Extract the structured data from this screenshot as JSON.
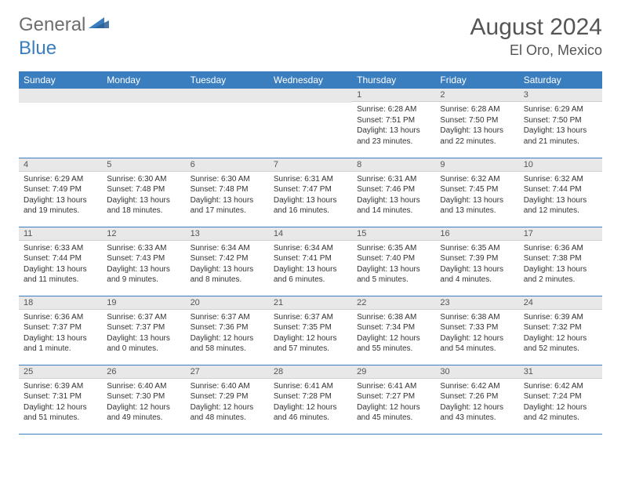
{
  "logo": {
    "part1": "General",
    "part2": "Blue"
  },
  "title": "August 2024",
  "location": "El Oro, Mexico",
  "colors": {
    "header_bg": "#3a7ebf",
    "header_text": "#ffffff",
    "daynum_bg": "#e8e8e8",
    "border": "#3a7ebf",
    "text": "#333333",
    "logo_gray": "#6e6e6e",
    "logo_blue": "#3a7ebf"
  },
  "weekdays": [
    "Sunday",
    "Monday",
    "Tuesday",
    "Wednesday",
    "Thursday",
    "Friday",
    "Saturday"
  ],
  "weeks": [
    [
      null,
      null,
      null,
      null,
      {
        "n": "1",
        "sr": "6:28 AM",
        "ss": "7:51 PM",
        "dl": "13 hours and 23 minutes."
      },
      {
        "n": "2",
        "sr": "6:28 AM",
        "ss": "7:50 PM",
        "dl": "13 hours and 22 minutes."
      },
      {
        "n": "3",
        "sr": "6:29 AM",
        "ss": "7:50 PM",
        "dl": "13 hours and 21 minutes."
      }
    ],
    [
      {
        "n": "4",
        "sr": "6:29 AM",
        "ss": "7:49 PM",
        "dl": "13 hours and 19 minutes."
      },
      {
        "n": "5",
        "sr": "6:30 AM",
        "ss": "7:48 PM",
        "dl": "13 hours and 18 minutes."
      },
      {
        "n": "6",
        "sr": "6:30 AM",
        "ss": "7:48 PM",
        "dl": "13 hours and 17 minutes."
      },
      {
        "n": "7",
        "sr": "6:31 AM",
        "ss": "7:47 PM",
        "dl": "13 hours and 16 minutes."
      },
      {
        "n": "8",
        "sr": "6:31 AM",
        "ss": "7:46 PM",
        "dl": "13 hours and 14 minutes."
      },
      {
        "n": "9",
        "sr": "6:32 AM",
        "ss": "7:45 PM",
        "dl": "13 hours and 13 minutes."
      },
      {
        "n": "10",
        "sr": "6:32 AM",
        "ss": "7:44 PM",
        "dl": "13 hours and 12 minutes."
      }
    ],
    [
      {
        "n": "11",
        "sr": "6:33 AM",
        "ss": "7:44 PM",
        "dl": "13 hours and 11 minutes."
      },
      {
        "n": "12",
        "sr": "6:33 AM",
        "ss": "7:43 PM",
        "dl": "13 hours and 9 minutes."
      },
      {
        "n": "13",
        "sr": "6:34 AM",
        "ss": "7:42 PM",
        "dl": "13 hours and 8 minutes."
      },
      {
        "n": "14",
        "sr": "6:34 AM",
        "ss": "7:41 PM",
        "dl": "13 hours and 6 minutes."
      },
      {
        "n": "15",
        "sr": "6:35 AM",
        "ss": "7:40 PM",
        "dl": "13 hours and 5 minutes."
      },
      {
        "n": "16",
        "sr": "6:35 AM",
        "ss": "7:39 PM",
        "dl": "13 hours and 4 minutes."
      },
      {
        "n": "17",
        "sr": "6:36 AM",
        "ss": "7:38 PM",
        "dl": "13 hours and 2 minutes."
      }
    ],
    [
      {
        "n": "18",
        "sr": "6:36 AM",
        "ss": "7:37 PM",
        "dl": "13 hours and 1 minute."
      },
      {
        "n": "19",
        "sr": "6:37 AM",
        "ss": "7:37 PM",
        "dl": "13 hours and 0 minutes."
      },
      {
        "n": "20",
        "sr": "6:37 AM",
        "ss": "7:36 PM",
        "dl": "12 hours and 58 minutes."
      },
      {
        "n": "21",
        "sr": "6:37 AM",
        "ss": "7:35 PM",
        "dl": "12 hours and 57 minutes."
      },
      {
        "n": "22",
        "sr": "6:38 AM",
        "ss": "7:34 PM",
        "dl": "12 hours and 55 minutes."
      },
      {
        "n": "23",
        "sr": "6:38 AM",
        "ss": "7:33 PM",
        "dl": "12 hours and 54 minutes."
      },
      {
        "n": "24",
        "sr": "6:39 AM",
        "ss": "7:32 PM",
        "dl": "12 hours and 52 minutes."
      }
    ],
    [
      {
        "n": "25",
        "sr": "6:39 AM",
        "ss": "7:31 PM",
        "dl": "12 hours and 51 minutes."
      },
      {
        "n": "26",
        "sr": "6:40 AM",
        "ss": "7:30 PM",
        "dl": "12 hours and 49 minutes."
      },
      {
        "n": "27",
        "sr": "6:40 AM",
        "ss": "7:29 PM",
        "dl": "12 hours and 48 minutes."
      },
      {
        "n": "28",
        "sr": "6:41 AM",
        "ss": "7:28 PM",
        "dl": "12 hours and 46 minutes."
      },
      {
        "n": "29",
        "sr": "6:41 AM",
        "ss": "7:27 PM",
        "dl": "12 hours and 45 minutes."
      },
      {
        "n": "30",
        "sr": "6:42 AM",
        "ss": "7:26 PM",
        "dl": "12 hours and 43 minutes."
      },
      {
        "n": "31",
        "sr": "6:42 AM",
        "ss": "7:24 PM",
        "dl": "12 hours and 42 minutes."
      }
    ]
  ],
  "labels": {
    "sunrise": "Sunrise:",
    "sunset": "Sunset:",
    "daylight": "Daylight:"
  }
}
